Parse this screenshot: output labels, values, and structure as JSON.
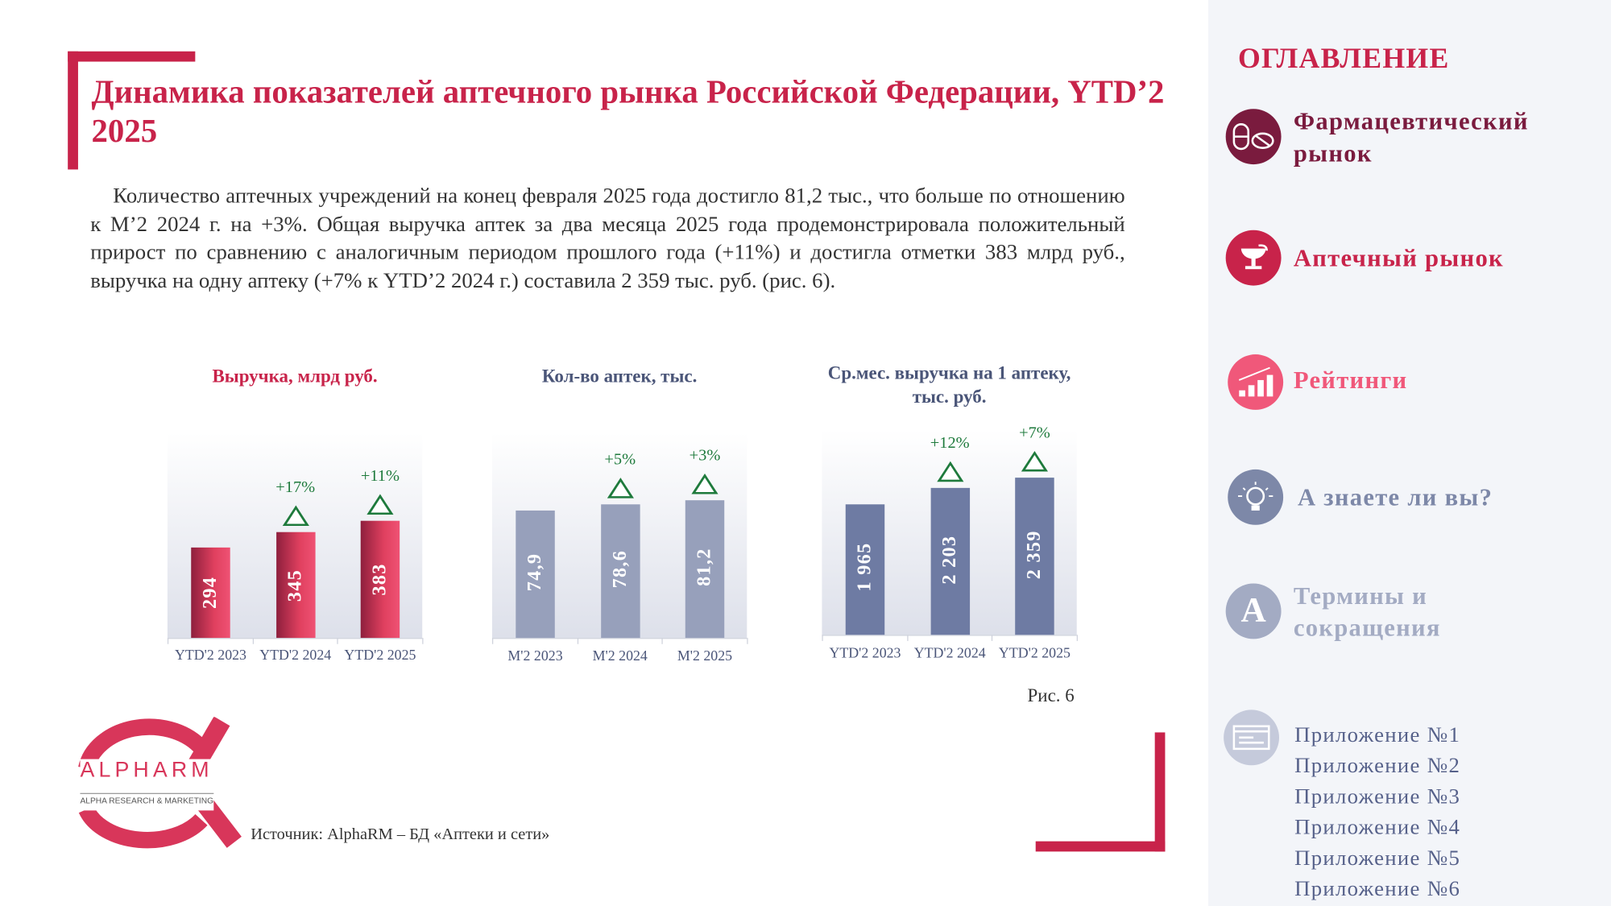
{
  "header": {
    "title": "Динамика показателей аптечного рынка Российской Федерации, YTD’2 2025"
  },
  "body": {
    "paragraph": "Количество аптечных учреждений на конец февраля 2025 года достигло 81,2 тыс., что больше по отношению к М’2 2024 г. на +3%. Общая выручка аптек за два месяца 2025 года продемонстрировала положительный прирост по сравнению с аналогичным периодом прошлого года (+11%) и достигла отметки 383 млрд руб., выручка на одну аптеку (+7% к YTD’2 2024 г.) составила 2 359 тыс. руб. (рис. 6).",
    "figure_caption": "Рис. 6",
    "source": "Источник: AlphaRM – БД «Аптеки и сети»"
  },
  "chart_data": [
    {
      "type": "bar",
      "title": "Выручка, млрд руб.",
      "categories": [
        "YTD'2 2023",
        "YTD'2 2024",
        "YTD'2 2025"
      ],
      "values": [
        294,
        345,
        383
      ],
      "labels": [
        "294",
        "345",
        "383"
      ],
      "growth": [
        "",
        "+17%",
        "+11%"
      ],
      "color": "#d4365c"
    },
    {
      "type": "bar",
      "title": "Кол-во аптек, тыс.",
      "categories": [
        "M'2 2023",
        "M'2 2024",
        "M'2 2025"
      ],
      "values": [
        74.9,
        78.6,
        81.2
      ],
      "labels": [
        "74,9",
        "78,6",
        "81,2"
      ],
      "growth": [
        "",
        "+5%",
        "+3%"
      ],
      "color": "#97a0bb"
    },
    {
      "type": "bar",
      "title": "Ср.мес. выручка на 1 аптеку, тыс. руб.",
      "categories": [
        "YTD'2 2023",
        "YTD'2 2024",
        "YTD'2 2025"
      ],
      "values": [
        1965,
        2203,
        2359
      ],
      "labels": [
        "1 965",
        "2 203",
        "2 359"
      ],
      "growth": [
        "",
        "+12%",
        "+7%"
      ],
      "color": "#6e7ba3"
    }
  ],
  "logo": {
    "name": "ALPHARM",
    "tagline": "ALPHA RESEARCH & MARKETING"
  },
  "sidebar": {
    "title": "ОГЛАВЛЕНИЕ",
    "items": [
      {
        "label": "Фармацевтический рынок",
        "icon": "pills-icon",
        "color": "#7a1b3e"
      },
      {
        "label": "Аптечный рынок",
        "icon": "pharmacy-bowl-icon",
        "color": "#c8234a"
      },
      {
        "label": "Рейтинги",
        "icon": "bar-chart-icon",
        "color": "#f0587a"
      },
      {
        "label": "А знаете ли вы?",
        "icon": "lightbulb-icon",
        "color": "#7d88a8"
      },
      {
        "label": "Термины и сокращения",
        "icon": "letter-a-icon",
        "color": "#a3abc3"
      }
    ],
    "appendix_icon_color": "#c5cadb",
    "appendices": [
      "Приложение №1",
      "Приложение №2",
      "Приложение №3",
      "Приложение №4",
      "Приложение №5",
      "Приложение №6"
    ]
  }
}
